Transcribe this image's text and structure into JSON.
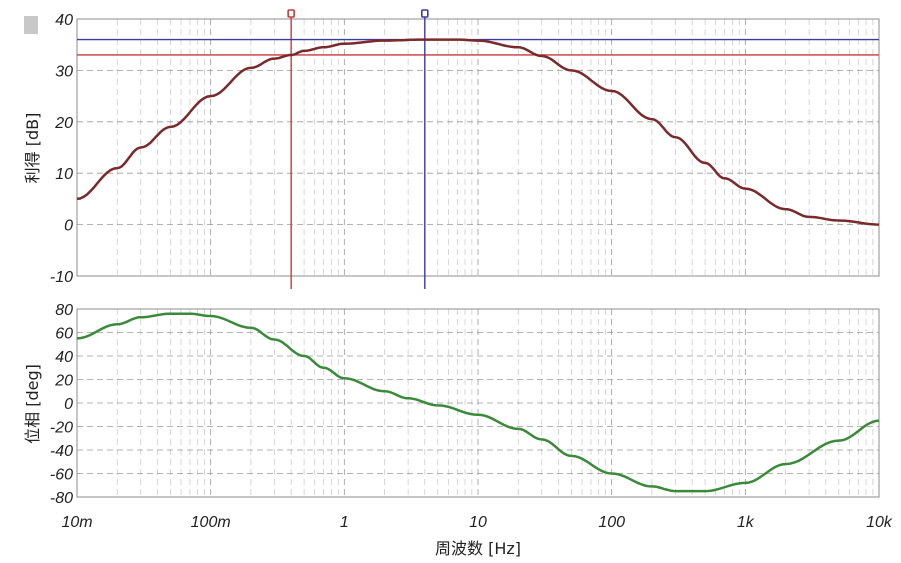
{
  "chart_data": [
    {
      "type": "line",
      "panel": "gain",
      "ylabel": "利得 [dB]",
      "ylim": [
        -10,
        40
      ],
      "yticks": [
        40,
        30,
        20,
        10,
        0,
        -10
      ],
      "xscale": "log",
      "xlim": [
        0.01,
        10000
      ],
      "grid": true,
      "colors": {
        "curve": "#7a2a2a",
        "cursor1": "#c83a3a",
        "cursor2": "#3a3aa8"
      },
      "series": [
        {
          "x": [
            0.01,
            0.02,
            0.03,
            0.05,
            0.1,
            0.2,
            0.3,
            0.4,
            0.5,
            0.7,
            1,
            2,
            4,
            7,
            10,
            20,
            30,
            50,
            100,
            200,
            300,
            500,
            700,
            1000,
            2000,
            3000,
            5000,
            10000
          ],
          "y": [
            5,
            11,
            15,
            19,
            25,
            30.5,
            32.3,
            33,
            33.8,
            34.5,
            35.2,
            35.8,
            36,
            36,
            35.8,
            34.5,
            32.8,
            30,
            26,
            20.5,
            17,
            12,
            9,
            7,
            3,
            1.5,
            0.8,
            0
          ]
        }
      ],
      "cursors": [
        {
          "x": 0.4,
          "y": 33
        },
        {
          "x": 4,
          "y": 36
        }
      ]
    },
    {
      "type": "line",
      "panel": "phase",
      "ylabel": "位相 [deg]",
      "xlabel": "周波数 [Hz]",
      "ylim": [
        -80,
        80
      ],
      "yticks": [
        80,
        60,
        40,
        20,
        0,
        -20,
        -40,
        -60,
        -80
      ],
      "xscale": "log",
      "xlim": [
        0.01,
        10000
      ],
      "xticks": [
        "10m",
        "100m",
        "1",
        "10",
        "100",
        "1k",
        "10k"
      ],
      "grid": true,
      "colors": {
        "curve": "#3a8a3a"
      },
      "series": [
        {
          "x": [
            0.01,
            0.02,
            0.03,
            0.05,
            0.07,
            0.1,
            0.2,
            0.3,
            0.5,
            0.7,
            1,
            2,
            3,
            5,
            10,
            20,
            30,
            50,
            100,
            200,
            300,
            500,
            1000,
            2000,
            5000,
            10000
          ],
          "y": [
            55,
            67,
            73,
            76,
            76,
            74,
            64,
            54,
            40,
            30,
            21,
            10,
            4,
            -2,
            -10,
            -22,
            -31,
            -45,
            -60,
            -71,
            -75,
            -75,
            -68,
            -52,
            -32,
            -15
          ]
        }
      ]
    }
  ]
}
